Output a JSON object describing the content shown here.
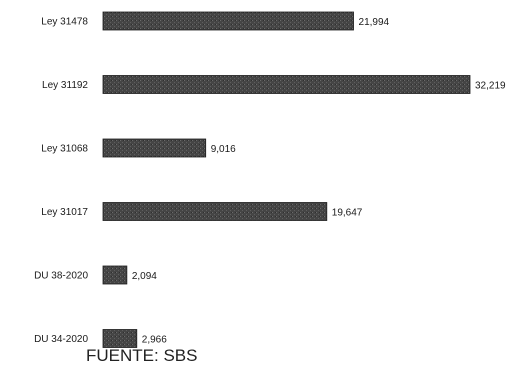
{
  "chart_data": {
    "type": "bar",
    "orientation": "horizontal",
    "categories": [
      "Ley 31478",
      "Ley 31192",
      "Ley 31068",
      "Ley 31017",
      "DU 38-2020",
      "DU 34-2020"
    ],
    "values": [
      21994,
      32219,
      9016,
      19647,
      2094,
      2966
    ],
    "value_labels": [
      "21,994",
      "32,219",
      "9,016",
      "19,647",
      "2,094",
      "2,966"
    ],
    "xlim": [
      0,
      32219
    ],
    "grid": false,
    "legend": "none",
    "bar_color": "#4a4a4a"
  },
  "source": "FUENTE: SBS"
}
